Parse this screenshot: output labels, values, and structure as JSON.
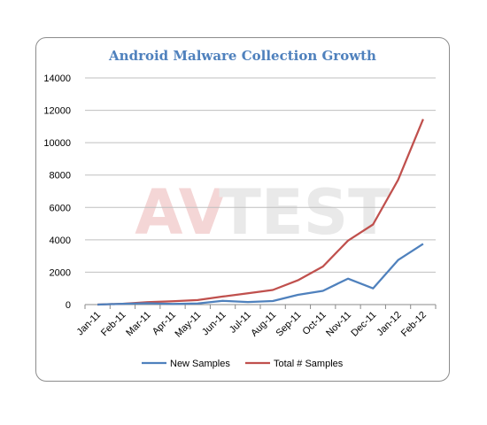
{
  "chart_data": {
    "type": "line",
    "title": "Android Malware Collection Growth",
    "categories": [
      "Jan-11",
      "Feb-11",
      "Mar-11",
      "Apr-11",
      "May-11",
      "Jun-11",
      "Jul-11",
      "Aug-11",
      "Sep-11",
      "Oct-11",
      "Nov-11",
      "Dec-11",
      "Jan-12",
      "Feb-12"
    ],
    "ylim": [
      0,
      14000
    ],
    "yticks": [
      0,
      2000,
      4000,
      6000,
      8000,
      10000,
      12000,
      14000
    ],
    "grid": true,
    "legend_position": "bottom",
    "series": [
      {
        "name": "New Samples",
        "color": "#4f81bd",
        "values": [
          0,
          50,
          80,
          40,
          70,
          230,
          160,
          220,
          600,
          850,
          1600,
          1000,
          2750,
          3750
        ]
      },
      {
        "name": "Total # Samples",
        "color": "#c0504d",
        "values": [
          0,
          50,
          150,
          200,
          280,
          500,
          700,
          900,
          1500,
          2350,
          3950,
          4950,
          7700,
          11450
        ]
      }
    ]
  },
  "watermark": {
    "left": "AV",
    "right": "TEST"
  }
}
